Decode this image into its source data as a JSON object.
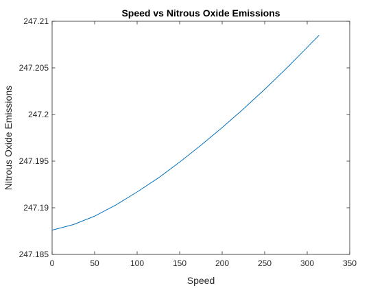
{
  "chart_data": {
    "type": "line",
    "title": "Speed vs Nitrous Oxide Emissions",
    "xlabel": "Speed",
    "ylabel": "Nitrous Oxide Emissions",
    "xlim": [
      0,
      350
    ],
    "ylim": [
      247.185,
      247.21
    ],
    "xticks": [
      0,
      50,
      100,
      150,
      200,
      250,
      300,
      350
    ],
    "xtick_labels": [
      "0",
      "50",
      "100",
      "150",
      "200",
      "250",
      "300",
      "350"
    ],
    "yticks": [
      247.185,
      247.19,
      247.195,
      247.2,
      247.205,
      247.21
    ],
    "ytick_labels": [
      "247.185",
      "247.19",
      "247.195",
      "247.2",
      "247.205",
      "247.21"
    ],
    "grid": false,
    "series": [
      {
        "color": "#0072BD",
        "x": [
          0,
          25,
          50,
          75,
          100,
          125,
          150,
          175,
          200,
          225,
          250,
          275,
          300,
          314
        ],
        "y": [
          247.1876,
          247.1882,
          247.1891,
          247.1903,
          247.1917,
          247.1932,
          247.1949,
          247.1967,
          247.1986,
          247.2006,
          247.2027,
          247.2049,
          247.2072,
          247.2085
        ]
      }
    ]
  }
}
